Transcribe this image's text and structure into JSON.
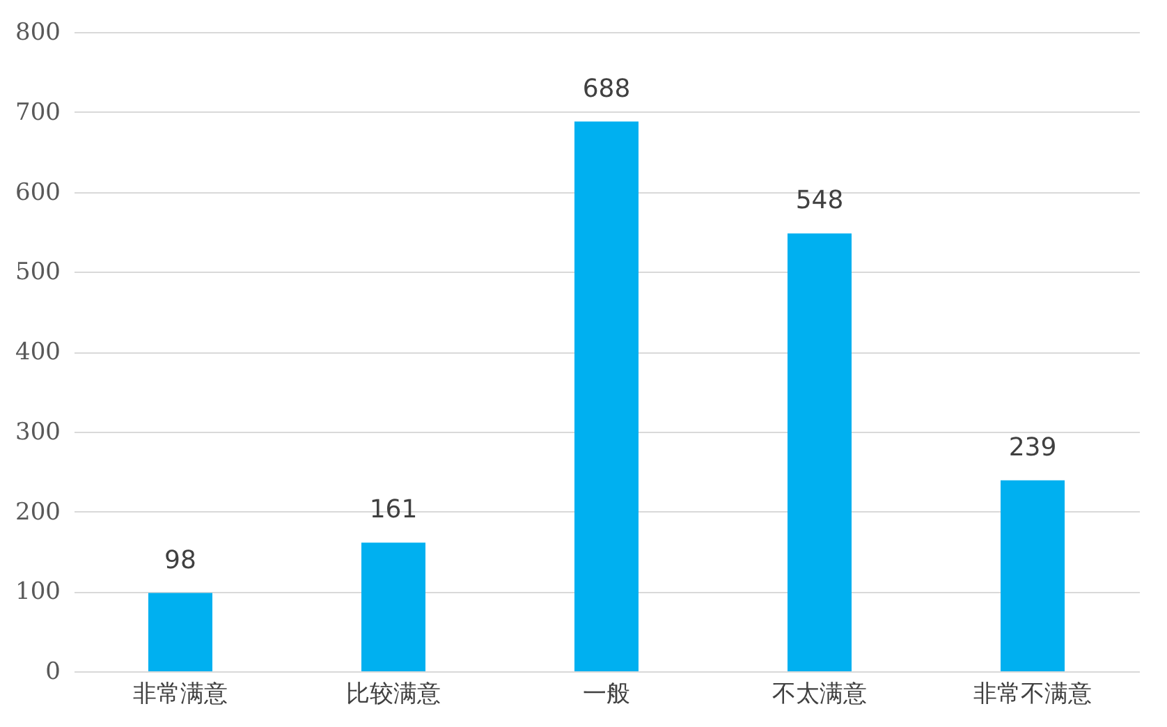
{
  "chart_data": {
    "type": "bar",
    "categories": [
      "非常满意",
      "比较满意",
      "一般",
      "不太满意",
      "非常不满意"
    ],
    "values": [
      98,
      161,
      688,
      548,
      239
    ],
    "color": "#00b0f0",
    "ylim": [
      0,
      800
    ],
    "yticks": [
      0,
      100,
      200,
      300,
      400,
      500,
      600,
      700,
      800
    ],
    "grid": "y",
    "data_labels": true
  }
}
